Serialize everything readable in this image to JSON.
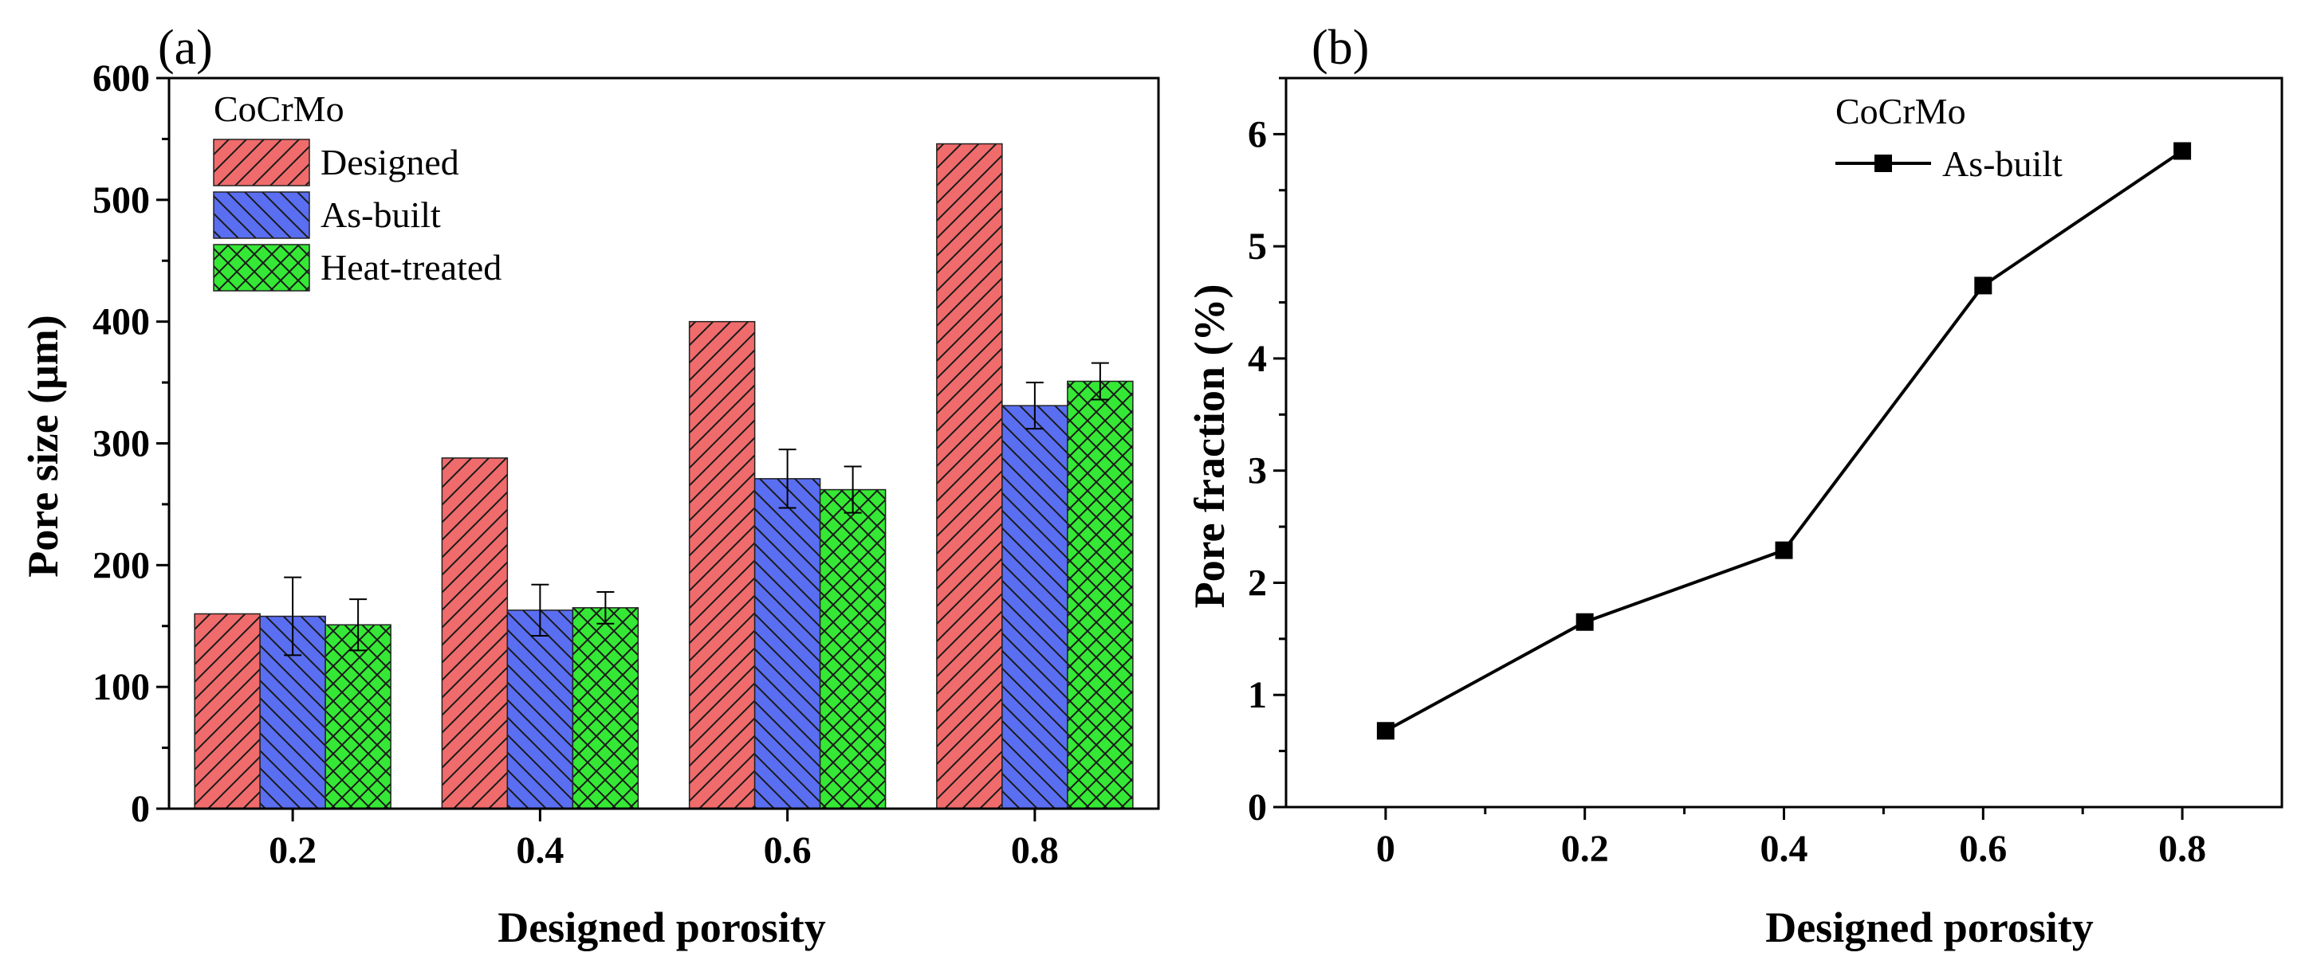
{
  "colors": {
    "designed": "#f06b6b",
    "as_built": "#5a6ef2",
    "heat_treated": "#35e835",
    "line": "#000000"
  },
  "chart_data": [
    {
      "panel_label": "(a)",
      "type": "bar",
      "categories": [
        "0.2",
        "0.4",
        "0.6",
        "0.8"
      ],
      "series": [
        {
          "name": "Designed",
          "values": [
            160,
            288,
            400,
            546
          ],
          "errors": [
            null,
            null,
            null,
            null
          ]
        },
        {
          "name": "As-built",
          "values": [
            158,
            163,
            271,
            331
          ],
          "errors": [
            32,
            21,
            24,
            19
          ]
        },
        {
          "name": "Heat-treated",
          "values": [
            151,
            165,
            262,
            351
          ],
          "errors": [
            21,
            13,
            19,
            15
          ]
        }
      ],
      "xlabel": "Designed porosity",
      "ylabel": "Pore size (μm)",
      "ylim": [
        0,
        600
      ],
      "yticks": [
        "0",
        "100",
        "200",
        "300",
        "400",
        "500",
        "600"
      ],
      "legend_title": "CoCrMo",
      "legend_position": "top-left",
      "grid": false
    },
    {
      "panel_label": "(b)",
      "type": "line",
      "x": [
        0,
        0.2,
        0.4,
        0.6,
        0.8
      ],
      "xticks": [
        "0",
        "0.2",
        "0.4",
        "0.6",
        "0.8"
      ],
      "series": [
        {
          "name": "As-built",
          "values": [
            0.68,
            1.65,
            2.29,
            4.65,
            5.85
          ]
        }
      ],
      "xlabel": "Designed porosity",
      "ylabel": "Pore fraction (%)",
      "xlim": [
        -0.1,
        0.9
      ],
      "ylim": [
        0,
        6.5
      ],
      "yticks": [
        "0",
        "1",
        "2",
        "3",
        "4",
        "5",
        "6"
      ],
      "legend_title": "CoCrMo",
      "legend_position": "top-right",
      "grid": false
    }
  ]
}
